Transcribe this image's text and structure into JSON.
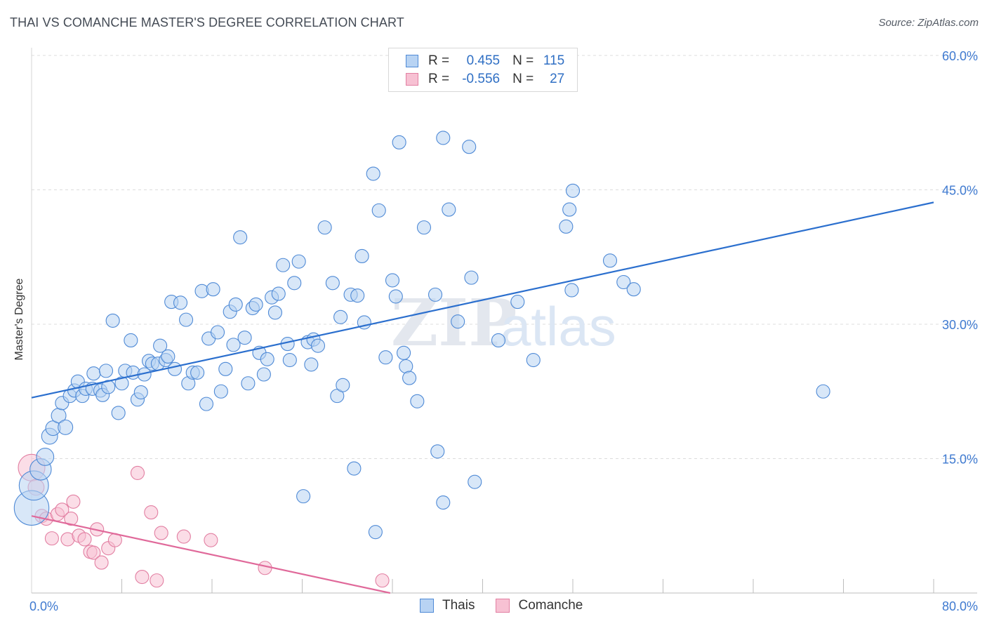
{
  "header": {
    "title": "THAI VS COMANCHE MASTER'S DEGREE CORRELATION CHART",
    "source": "Source: ZipAtlas.com"
  },
  "legend": {
    "thais": {
      "r_label": "R =",
      "r_value": "0.455",
      "n_label": "N =",
      "n_value": "115"
    },
    "comanche": {
      "r_label": "R =",
      "r_value": "-0.556",
      "n_label": "N =",
      "n_value": "27"
    }
  },
  "bottom_legend": {
    "thais": "Thais",
    "comanche": "Comanche"
  },
  "colors": {
    "thais_fill": "#b8d3f3",
    "thais_stroke": "#4f8ad6",
    "thais_line": "#2b6fce",
    "comanche_fill": "#f7c1d3",
    "comanche_stroke": "#e27fa2",
    "comanche_line": "#e0699a",
    "grid": "#dcdcdc",
    "tick_text": "#3f7ad0",
    "watermark": "#e3e7ee"
  },
  "chart_data": {
    "type": "scatter",
    "title": "THAI VS COMANCHE MASTER'S DEGREE CORRELATION CHART",
    "xlabel": "",
    "ylabel": "Master's Degree",
    "xlim": [
      0,
      80
    ],
    "ylim": [
      0,
      60
    ],
    "x_tick_labels": [
      {
        "value": 0,
        "label": "0.0%"
      },
      {
        "value": 80,
        "label": "80.0%"
      }
    ],
    "y_tick_labels": [
      {
        "value": 15,
        "label": "15.0%"
      },
      {
        "value": 30,
        "label": "30.0%"
      },
      {
        "value": 45,
        "label": "45.0%"
      },
      {
        "value": 60,
        "label": "60.0%"
      }
    ],
    "watermark": {
      "zip": "ZIP",
      "atlas": "atlas"
    },
    "series": [
      {
        "name": "Thais",
        "trend": [
          [
            0,
            21.8
          ],
          [
            80,
            43.6
          ]
        ],
        "points": [
          [
            0,
            9.5,
            2.6
          ],
          [
            0.2,
            12,
            2.2
          ],
          [
            0.8,
            13.8,
            1.6
          ],
          [
            1.2,
            15.2,
            1.3
          ],
          [
            1.6,
            17.5,
            1.2
          ],
          [
            1.9,
            18.4,
            1.1
          ],
          [
            2.4,
            19.8,
            1.1
          ],
          [
            3.0,
            18.5,
            1.1
          ],
          [
            2.7,
            21.2,
            1.0
          ],
          [
            3.4,
            22.0,
            1.0
          ],
          [
            3.8,
            22.6,
            1.0
          ],
          [
            4.1,
            23.6,
            1.0
          ],
          [
            4.5,
            22.0,
            1.0
          ],
          [
            4.8,
            22.8,
            1.0
          ],
          [
            5.4,
            22.8,
            1.0
          ],
          [
            5.5,
            24.5,
            1.0
          ],
          [
            6.1,
            22.6,
            1.0
          ],
          [
            6.3,
            22.1,
            1.0
          ],
          [
            6.6,
            24.8,
            1.0
          ],
          [
            6.8,
            23.0,
            1.0
          ],
          [
            7.2,
            30.4,
            1.0
          ],
          [
            7.7,
            20.1,
            1.0
          ],
          [
            8.0,
            23.4,
            1.0
          ],
          [
            8.3,
            24.8,
            1.0
          ],
          [
            8.8,
            28.2,
            1.0
          ],
          [
            9.0,
            24.6,
            1.0
          ],
          [
            9.4,
            21.6,
            1.0
          ],
          [
            9.7,
            22.4,
            1.0
          ],
          [
            10.0,
            24.4,
            1.0
          ],
          [
            10.4,
            25.9,
            1.0
          ],
          [
            10.7,
            25.6,
            1.0
          ],
          [
            11.2,
            25.6,
            1.0
          ],
          [
            11.4,
            27.6,
            1.0
          ],
          [
            11.9,
            26.0,
            1.0
          ],
          [
            12.1,
            26.4,
            1.0
          ],
          [
            12.7,
            25.0,
            1.0
          ],
          [
            12.4,
            32.5,
            1.0
          ],
          [
            13.2,
            32.4,
            1.0
          ],
          [
            13.7,
            30.5,
            1.0
          ],
          [
            13.9,
            23.4,
            1.0
          ],
          [
            14.3,
            24.6,
            1.0
          ],
          [
            14.7,
            24.6,
            1.0
          ],
          [
            15.1,
            33.7,
            1.0
          ],
          [
            15.5,
            21.1,
            1.0
          ],
          [
            15.7,
            28.4,
            1.0
          ],
          [
            16.1,
            33.9,
            1.0
          ],
          [
            16.5,
            29.1,
            1.0
          ],
          [
            16.8,
            22.5,
            1.0
          ],
          [
            17.2,
            25.0,
            1.0
          ],
          [
            17.6,
            31.4,
            1.0
          ],
          [
            17.9,
            27.7,
            1.0
          ],
          [
            18.1,
            32.2,
            1.0
          ],
          [
            18.5,
            39.7,
            1.0
          ],
          [
            18.9,
            28.5,
            1.0
          ],
          [
            19.2,
            23.4,
            1.0
          ],
          [
            19.6,
            31.8,
            1.0
          ],
          [
            19.9,
            32.2,
            1.0
          ],
          [
            20.2,
            26.8,
            1.0
          ],
          [
            20.6,
            24.4,
            1.0
          ],
          [
            20.9,
            26.1,
            1.0
          ],
          [
            21.3,
            33.0,
            1.0
          ],
          [
            21.6,
            31.3,
            1.0
          ],
          [
            21.9,
            33.4,
            1.0
          ],
          [
            22.3,
            36.6,
            1.0
          ],
          [
            22.7,
            27.8,
            1.0
          ],
          [
            22.9,
            26.0,
            1.0
          ],
          [
            23.3,
            34.6,
            1.0
          ],
          [
            23.7,
            37.0,
            1.0
          ],
          [
            24.1,
            10.8,
            1.0
          ],
          [
            24.5,
            28.0,
            1.0
          ],
          [
            24.8,
            25.5,
            1.0
          ],
          [
            25.0,
            28.3,
            1.0
          ],
          [
            25.4,
            27.6,
            1.0
          ],
          [
            26.0,
            40.8,
            1.0
          ],
          [
            26.7,
            34.6,
            1.0
          ],
          [
            27.1,
            22.0,
            1.0
          ],
          [
            27.4,
            30.8,
            1.0
          ],
          [
            27.6,
            23.2,
            1.0
          ],
          [
            28.3,
            33.3,
            1.0
          ],
          [
            28.6,
            13.9,
            1.0
          ],
          [
            28.9,
            33.2,
            1.0
          ],
          [
            29.3,
            37.6,
            1.0
          ],
          [
            29.5,
            30.2,
            1.0
          ],
          [
            30.3,
            46.8,
            1.0
          ],
          [
            30.5,
            6.8,
            1.0
          ],
          [
            30.8,
            42.7,
            1.0
          ],
          [
            31.4,
            26.3,
            1.0
          ],
          [
            32.0,
            34.9,
            1.0
          ],
          [
            32.3,
            33.1,
            1.0
          ],
          [
            32.6,
            50.3,
            1.0
          ],
          [
            33.0,
            26.8,
            1.0
          ],
          [
            33.2,
            25.3,
            1.0
          ],
          [
            33.5,
            24.0,
            1.0
          ],
          [
            34.2,
            21.4,
            1.0
          ],
          [
            34.8,
            40.8,
            1.0
          ],
          [
            35.8,
            33.3,
            1.0
          ],
          [
            36.0,
            15.8,
            1.0
          ],
          [
            36.5,
            10.1,
            1.0
          ],
          [
            36.5,
            50.8,
            1.0
          ],
          [
            37.0,
            42.8,
            1.0
          ],
          [
            37.8,
            30.3,
            1.0
          ],
          [
            38.8,
            49.8,
            1.0
          ],
          [
            39.0,
            35.2,
            1.0
          ],
          [
            39.3,
            12.4,
            1.0
          ],
          [
            41.4,
            28.2,
            1.0
          ],
          [
            43.1,
            32.5,
            1.0
          ],
          [
            44.5,
            26.0,
            1.0
          ],
          [
            47.4,
            40.9,
            1.0
          ],
          [
            47.7,
            42.8,
            1.0
          ],
          [
            47.9,
            33.8,
            1.0
          ],
          [
            48.0,
            44.9,
            1.0
          ],
          [
            51.3,
            37.1,
            1.0
          ],
          [
            52.5,
            34.7,
            1.0
          ],
          [
            53.4,
            33.9,
            1.0
          ],
          [
            70.2,
            22.5,
            1.0
          ]
        ]
      },
      {
        "name": "Comanche",
        "trend": [
          [
            0,
            8.6
          ],
          [
            31.8,
            0
          ]
        ],
        "points": [
          [
            0,
            14.0,
            2.0
          ],
          [
            0.4,
            11.8,
            1.2
          ],
          [
            0.9,
            8.6,
            1.0
          ],
          [
            1.3,
            8.3,
            1.0
          ],
          [
            1.8,
            6.1,
            1.0
          ],
          [
            2.3,
            8.8,
            1.0
          ],
          [
            2.7,
            9.3,
            1.0
          ],
          [
            3.2,
            6.0,
            1.0
          ],
          [
            3.5,
            8.3,
            1.0
          ],
          [
            3.7,
            10.2,
            1.0
          ],
          [
            4.2,
            6.4,
            1.0
          ],
          [
            4.7,
            6.0,
            1.0
          ],
          [
            5.2,
            4.6,
            1.0
          ],
          [
            5.5,
            4.5,
            1.0
          ],
          [
            5.8,
            7.1,
            1.0
          ],
          [
            6.2,
            3.4,
            1.0
          ],
          [
            6.8,
            5.0,
            1.0
          ],
          [
            7.4,
            5.9,
            1.0
          ],
          [
            9.4,
            13.4,
            1.0
          ],
          [
            9.8,
            1.8,
            1.0
          ],
          [
            10.6,
            9.0,
            1.0
          ],
          [
            11.1,
            1.4,
            1.0
          ],
          [
            11.5,
            6.7,
            1.0
          ],
          [
            13.5,
            6.3,
            1.0
          ],
          [
            15.9,
            5.9,
            1.0
          ],
          [
            20.7,
            2.8,
            1.0
          ],
          [
            31.1,
            1.4,
            1.0
          ]
        ]
      }
    ]
  }
}
